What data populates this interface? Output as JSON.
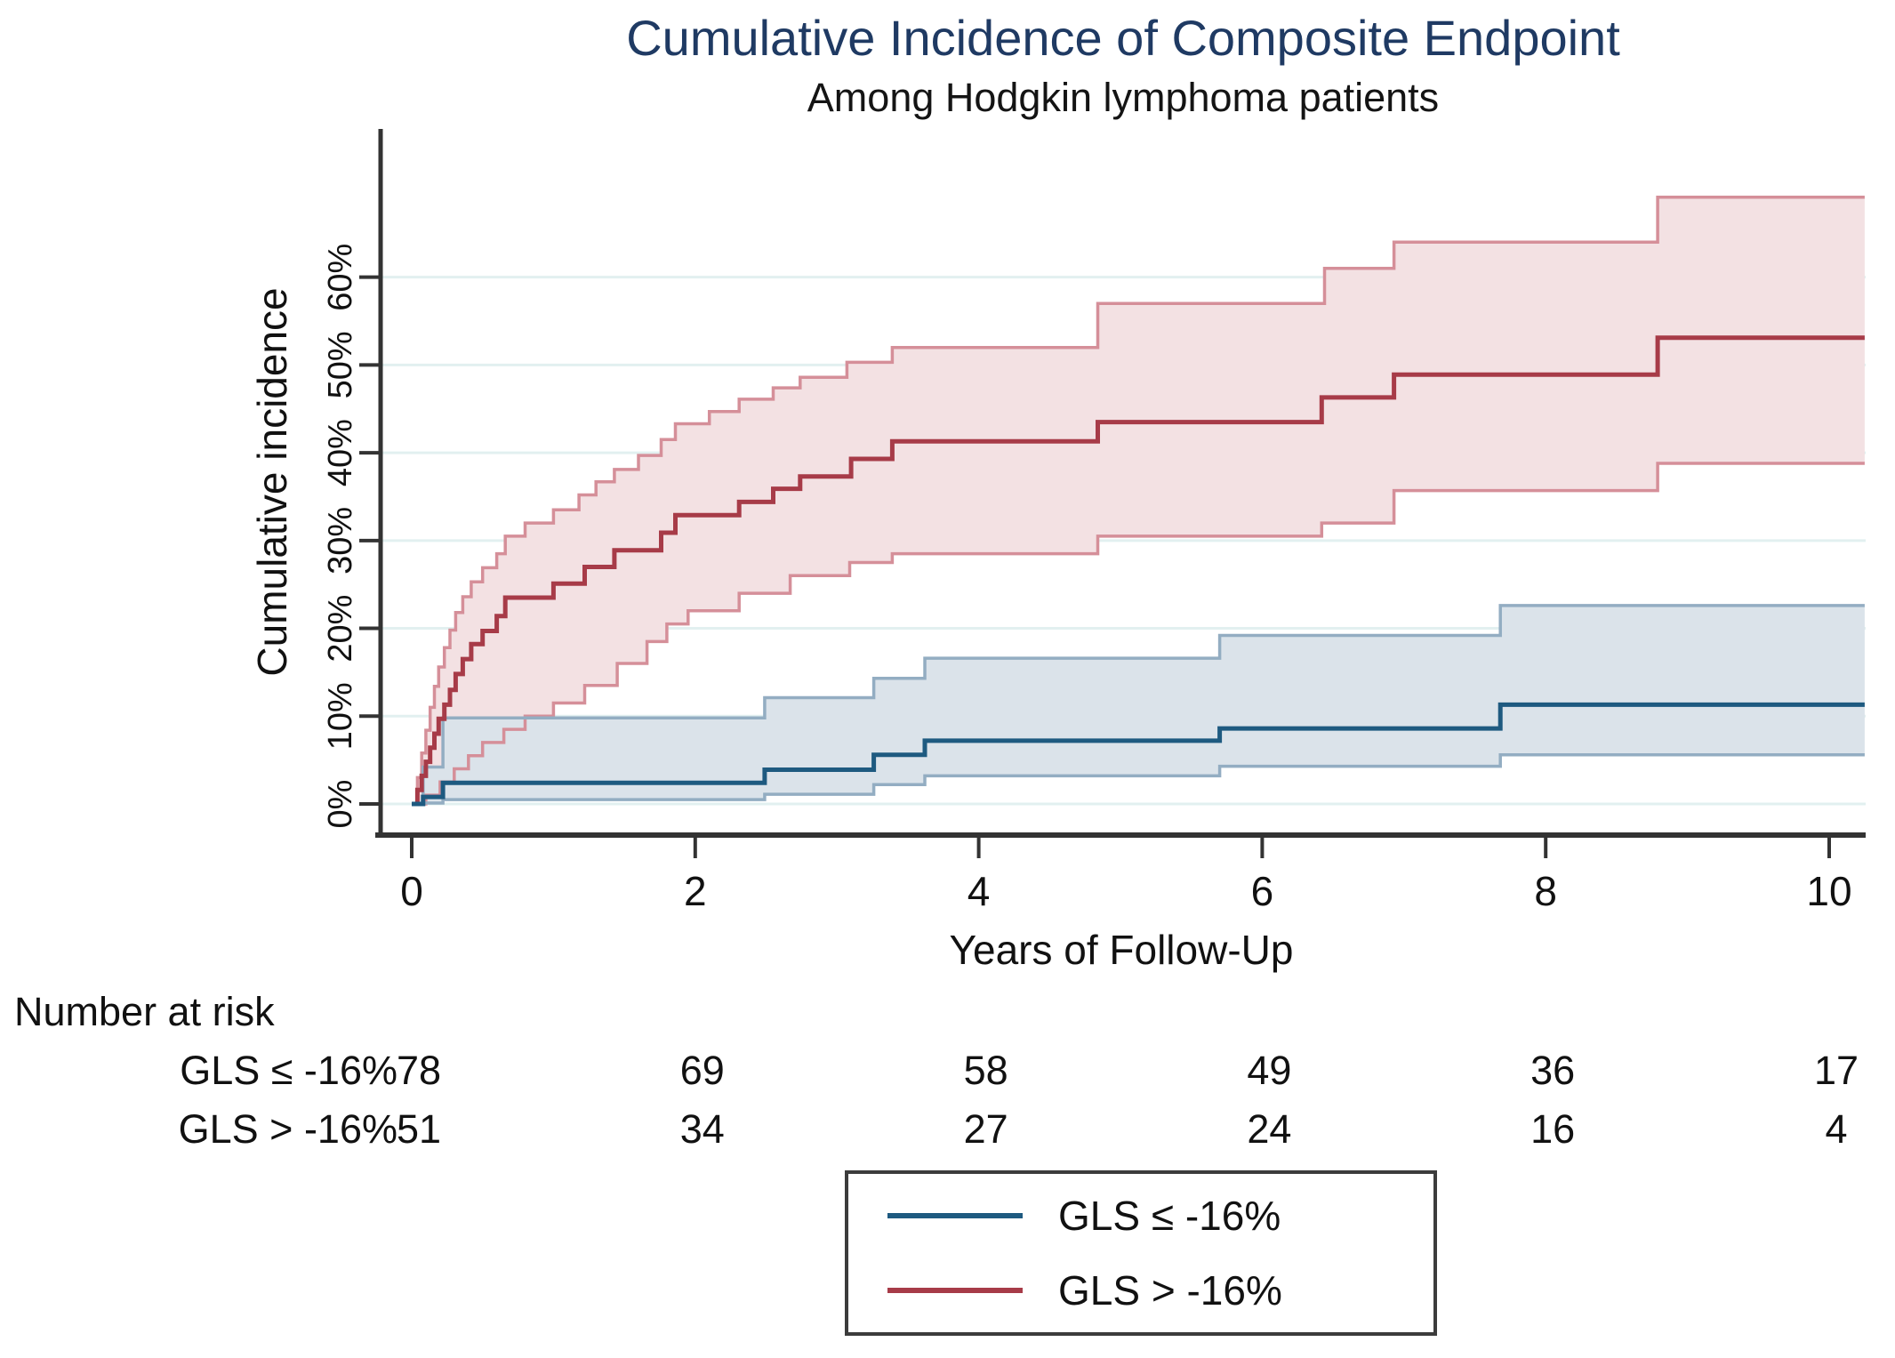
{
  "chart_data": {
    "type": "line",
    "variant": "cumulative-incidence-step-curves-with-confidence-bands",
    "title": "Cumulative Incidence of Composite Endpoint",
    "subtitle": "Among Hodgkin lymphoma patients",
    "xlabel": "Years of Follow-Up",
    "ylabel": "Cumulative incidence",
    "xlim": [
      0,
      10.25
    ],
    "ylim": [
      0,
      77
    ],
    "grid": true,
    "xticks": [
      0,
      2,
      4,
      6,
      8,
      10
    ],
    "yticks": [
      {
        "value": 0,
        "label": "0%"
      },
      {
        "value": 10,
        "label": "10%"
      },
      {
        "value": 20,
        "label": "20%"
      },
      {
        "value": 30,
        "label": "30%"
      },
      {
        "value": 40,
        "label": "40%"
      },
      {
        "value": 50,
        "label": "50%"
      },
      {
        "value": 60,
        "label": "60%"
      }
    ],
    "legend_position": "bottom-center-boxed",
    "series": [
      {
        "name": "GLS ≤ -16%",
        "color": "#1e5a80",
        "band_fill": "#dbe3ea",
        "band_edge": "#93adc2",
        "steps": [
          [
            0,
            0
          ],
          [
            0.08,
            0.8
          ],
          [
            0.22,
            2.4
          ],
          [
            2.49,
            3.9
          ],
          [
            3.26,
            5.6
          ],
          [
            3.62,
            7.2
          ],
          [
            5.7,
            8.6
          ],
          [
            7.68,
            11.3
          ],
          [
            10.25,
            11.3
          ]
        ],
        "upper": [
          [
            0,
            0
          ],
          [
            0.08,
            4.2
          ],
          [
            0.22,
            9.8
          ],
          [
            2.49,
            12.1
          ],
          [
            3.26,
            14.3
          ],
          [
            3.62,
            16.6
          ],
          [
            5.7,
            19.2
          ],
          [
            7.68,
            22.6
          ],
          [
            10.25,
            22.6
          ]
        ],
        "lower": [
          [
            0,
            0
          ],
          [
            0.08,
            0.1
          ],
          [
            0.22,
            0.5
          ],
          [
            2.49,
            1.1
          ],
          [
            3.26,
            2.2
          ],
          [
            3.62,
            3.2
          ],
          [
            5.7,
            4.3
          ],
          [
            7.68,
            5.6
          ],
          [
            10.25,
            5.6
          ]
        ]
      },
      {
        "name": "GLS > -16%",
        "color": "#a73b48",
        "band_fill": "#f3e1e3",
        "band_edge": "#d58f99",
        "steps": [
          [
            0,
            0
          ],
          [
            0.04,
            1.6
          ],
          [
            0.07,
            3.2
          ],
          [
            0.1,
            4.8
          ],
          [
            0.13,
            6.4
          ],
          [
            0.16,
            8
          ],
          [
            0.19,
            9.7
          ],
          [
            0.23,
            11.3
          ],
          [
            0.27,
            13
          ],
          [
            0.31,
            14.8
          ],
          [
            0.36,
            16.5
          ],
          [
            0.42,
            18.2
          ],
          [
            0.5,
            19.7
          ],
          [
            0.6,
            21.4
          ],
          [
            0.66,
            23.5
          ],
          [
            1.0,
            25.1
          ],
          [
            1.22,
            27
          ],
          [
            1.43,
            28.9
          ],
          [
            1.76,
            30.9
          ],
          [
            1.86,
            32.9
          ],
          [
            2.31,
            34.4
          ],
          [
            2.55,
            35.9
          ],
          [
            2.74,
            37.3
          ],
          [
            3.1,
            39.3
          ],
          [
            3.39,
            41.3
          ],
          [
            4.84,
            43.5
          ],
          [
            6.42,
            46.3
          ],
          [
            6.93,
            48.9
          ],
          [
            8.79,
            53.1
          ],
          [
            10.25,
            53.1
          ]
        ],
        "upper": [
          [
            0,
            0
          ],
          [
            0.04,
            3
          ],
          [
            0.07,
            5.8
          ],
          [
            0.1,
            8.4
          ],
          [
            0.13,
            11
          ],
          [
            0.16,
            13.4
          ],
          [
            0.19,
            15.6
          ],
          [
            0.23,
            17.8
          ],
          [
            0.27,
            19.8
          ],
          [
            0.31,
            21.8
          ],
          [
            0.36,
            23.6
          ],
          [
            0.42,
            25.3
          ],
          [
            0.5,
            26.9
          ],
          [
            0.6,
            28.5
          ],
          [
            0.66,
            30.5
          ],
          [
            0.8,
            32
          ],
          [
            1.0,
            33.5
          ],
          [
            1.18,
            35.2
          ],
          [
            1.3,
            36.7
          ],
          [
            1.43,
            38.1
          ],
          [
            1.6,
            39.7
          ],
          [
            1.76,
            41.5
          ],
          [
            1.86,
            43.3
          ],
          [
            2.1,
            44.7
          ],
          [
            2.31,
            46.1
          ],
          [
            2.55,
            47.4
          ],
          [
            2.74,
            48.6
          ],
          [
            3.07,
            50.3
          ],
          [
            3.39,
            52
          ],
          [
            4.84,
            57
          ],
          [
            6.44,
            61
          ],
          [
            6.93,
            64
          ],
          [
            8.79,
            69.1
          ],
          [
            10.25,
            69.1
          ]
        ],
        "lower": [
          [
            0,
            0
          ],
          [
            0.1,
            1
          ],
          [
            0.2,
            2.5
          ],
          [
            0.3,
            4
          ],
          [
            0.4,
            5.5
          ],
          [
            0.5,
            7
          ],
          [
            0.65,
            8.5
          ],
          [
            0.8,
            10
          ],
          [
            1.0,
            11.5
          ],
          [
            1.22,
            13.5
          ],
          [
            1.45,
            16
          ],
          [
            1.66,
            18.5
          ],
          [
            1.8,
            20.5
          ],
          [
            1.95,
            22
          ],
          [
            2.31,
            24
          ],
          [
            2.67,
            26
          ],
          [
            3.09,
            27.5
          ],
          [
            3.39,
            28.5
          ],
          [
            4.84,
            30.5
          ],
          [
            6.42,
            32
          ],
          [
            6.93,
            35.7
          ],
          [
            8.79,
            38.8
          ],
          [
            10.25,
            38.8
          ]
        ]
      }
    ]
  },
  "risk_table": {
    "title": "Number at risk",
    "times": [
      0,
      2,
      4,
      6,
      8,
      10
    ],
    "rows": [
      {
        "label": "GLS ≤ -16%",
        "counts": [
          78,
          69,
          58,
          49,
          36,
          17
        ]
      },
      {
        "label": "GLS > -16%",
        "counts": [
          51,
          34,
          27,
          24,
          16,
          4
        ]
      }
    ]
  },
  "legend": {
    "items": [
      {
        "label": "GLS ≤ -16%",
        "color": "#1e5a80"
      },
      {
        "label": "GLS > -16%",
        "color": "#a73b48"
      }
    ]
  },
  "colors": {
    "title": "#1f3a63",
    "text": "#111111",
    "axis": "#333333",
    "gridline": "#e2f0f0"
  }
}
